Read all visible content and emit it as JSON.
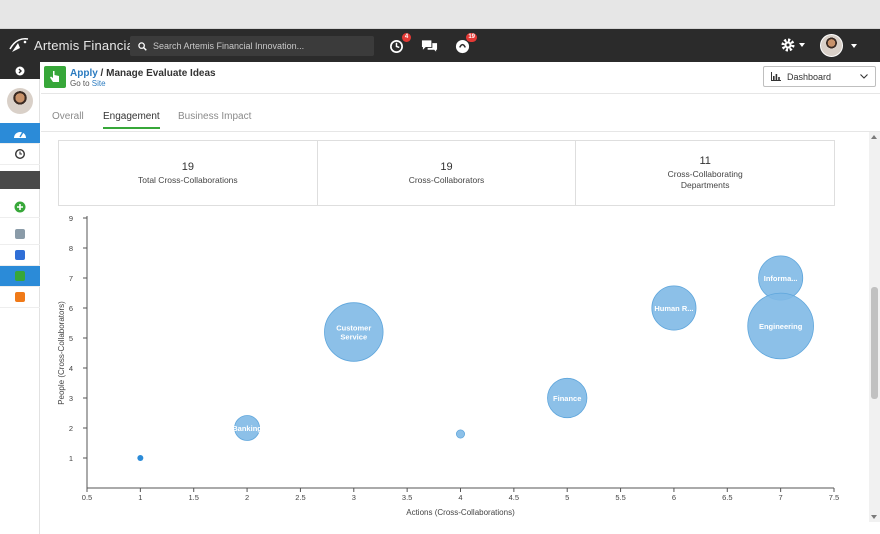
{
  "app": {
    "name": "Artemis Financial"
  },
  "search": {
    "placeholder": "Search Artemis Financial Innovation..."
  },
  "notifications": {
    "activity_count": "4",
    "ideas_count": "19"
  },
  "page": {
    "breadcrumb_link": "Apply",
    "breadcrumb_sep": " / ",
    "title": "Manage Evaluate Ideas",
    "goto_prefix": "Go to ",
    "goto_link": "Site"
  },
  "dashboard_select": {
    "value": "Dashboard"
  },
  "tabs": [
    {
      "label": "Overall"
    },
    {
      "label": "Engagement"
    },
    {
      "label": "Business Impact"
    }
  ],
  "stats": [
    {
      "value": "19",
      "label": "Total Cross-Collaborations"
    },
    {
      "value": "19",
      "label": "Cross-Collaborators"
    },
    {
      "value": "11",
      "label": "Cross-Collaborating Departments"
    }
  ],
  "colors": {
    "bubble": "#7fb9e6",
    "accent_green": "#37a739",
    "brand_blue": "#2b8bd8",
    "topbar": "#2b2b2b"
  },
  "icons": [
    "menu-toggle-icon",
    "dashboard-icon",
    "clock-icon",
    "add-icon",
    "tools-icon",
    "chat-icon",
    "hand-pointer-icon",
    "megaphone-icon",
    "gear-icon",
    "chart-bar-icon"
  ],
  "chart_data": {
    "type": "scatter",
    "xlabel": "Actions (Cross-Collaborations)",
    "ylabel": "People (Cross-Collaborators)",
    "xlim": [
      0.5,
      7.5
    ],
    "ylim": [
      0,
      9
    ],
    "xticks": [
      "0.5",
      "1",
      "1.5",
      "2",
      "2.5",
      "3",
      "3.5",
      "4",
      "4.5",
      "5",
      "5.5",
      "6",
      "6.5",
      "7",
      "7.5"
    ],
    "yticks": [
      "1",
      "2",
      "3",
      "4",
      "5",
      "6",
      "7",
      "8",
      "9"
    ],
    "points": [
      {
        "label": "",
        "x": 1,
        "y": 1,
        "size": 0.1
      },
      {
        "label": "Banking",
        "x": 2,
        "y": 2,
        "size": 2
      },
      {
        "label": "Customer Service",
        "x": 3,
        "y": 5.2,
        "size": 4.8
      },
      {
        "label": "",
        "x": 4,
        "y": 1.8,
        "size": 0.6
      },
      {
        "label": "Finance",
        "x": 5,
        "y": 3,
        "size": 3.2
      },
      {
        "label": "Human R...",
        "x": 6,
        "y": 6,
        "size": 3.6
      },
      {
        "label": "Informa...",
        "x": 7,
        "y": 7,
        "size": 3.6
      },
      {
        "label": "Engineering",
        "x": 7,
        "y": 5.4,
        "size": 5.4
      }
    ]
  }
}
